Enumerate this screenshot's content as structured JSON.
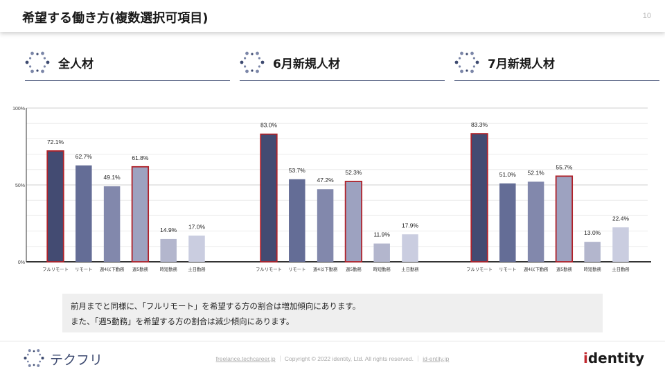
{
  "header": {
    "title": "希望する働き方(複数選択可項目)",
    "page_number": "10"
  },
  "sections": [
    {
      "title": "全人材"
    },
    {
      "title": "6月新規人材"
    },
    {
      "title": "7月新規人材"
    }
  ],
  "chart_data": {
    "type": "bar",
    "categories": [
      "フルリモート",
      "リモート",
      "週4以下勤務",
      "週5勤務",
      "時短勤務",
      "土日勤務"
    ],
    "ylim": [
      0,
      100
    ],
    "y_ticks": [
      "0%",
      "50%",
      "100%"
    ],
    "grid": true,
    "highlighted_categories": [
      "フルリモート",
      "週5勤務"
    ],
    "bar_colors": [
      "#434b72",
      "#646d96",
      "#8288ac",
      "#9da2c0",
      "#b3b6cd",
      "#cacde0"
    ],
    "highlight_color": "#b0222a",
    "groups": [
      {
        "name": "全人材",
        "values": [
          72.1,
          62.7,
          49.1,
          61.8,
          14.9,
          17.0
        ],
        "labels": [
          "72.1%",
          "62.7%",
          "49.1%",
          "61.8%",
          "14.9%",
          "17.0%"
        ]
      },
      {
        "name": "6月新規人材",
        "values": [
          83.0,
          53.7,
          47.2,
          52.3,
          11.9,
          17.9
        ],
        "labels": [
          "83.0%",
          "53.7%",
          "47.2%",
          "52.3%",
          "11.9%",
          "17.9%"
        ]
      },
      {
        "name": "7月新規人材",
        "values": [
          83.3,
          51.0,
          52.1,
          55.7,
          13.0,
          22.4
        ],
        "labels": [
          "83.3%",
          "51.0%",
          "52.1%",
          "55.7%",
          "13.0%",
          "22.4%"
        ]
      }
    ]
  },
  "note": {
    "line1": "前月までと同様に、「フルリモート」を希望する方の割合は増加傾向にあります。",
    "line2": "また、「週5勤務」を希望する方の割合は減少傾向にあります。"
  },
  "footer": {
    "link1": "freelance.techcareer.jp",
    "sep1": "｜",
    "copyright": "Copyright © 2022 identity, Ltd. All rights reserved.",
    "sep2": "｜",
    "link2": "id-entity.jp",
    "brand_left": "テクフリ",
    "brand_right_dot": "i",
    "brand_right_rest": "dentity"
  }
}
